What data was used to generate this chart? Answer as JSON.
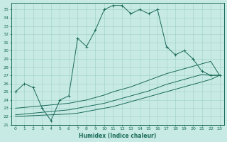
{
  "xlabel": "Humidex (Indice chaleur)",
  "xlim": [
    -0.5,
    23.5
  ],
  "ylim": [
    21,
    35.8
  ],
  "yticks": [
    21,
    22,
    23,
    24,
    25,
    26,
    27,
    28,
    29,
    30,
    31,
    32,
    33,
    34,
    35
  ],
  "xticks": [
    0,
    1,
    2,
    3,
    4,
    5,
    6,
    7,
    8,
    9,
    10,
    11,
    12,
    13,
    14,
    15,
    16,
    17,
    18,
    19,
    20,
    21,
    22,
    23
  ],
  "bg_color": "#c8eae4",
  "grid_color": "#9ecfc8",
  "line_color": "#1a6b5a",
  "series": {
    "max": [
      25.0,
      26.0,
      25.5,
      23.0,
      21.5,
      24.0,
      24.5,
      31.5,
      30.5,
      32.5,
      35.0,
      35.5,
      35.5,
      34.5,
      35.0,
      34.5,
      35.0,
      30.5,
      29.5,
      30.0,
      29.0,
      27.5,
      27.0,
      27.0
    ],
    "upper_diag": [
      23.0,
      23.1,
      23.2,
      23.3,
      23.4,
      23.5,
      23.6,
      23.8,
      24.0,
      24.3,
      24.6,
      25.0,
      25.3,
      25.6,
      26.0,
      26.4,
      26.8,
      27.2,
      27.5,
      27.8,
      28.1,
      28.4,
      28.7,
      27.0
    ],
    "mid_diag": [
      22.2,
      22.3,
      22.4,
      22.5,
      22.6,
      22.7,
      22.8,
      23.0,
      23.2,
      23.4,
      23.6,
      23.9,
      24.2,
      24.5,
      24.8,
      25.1,
      25.5,
      25.9,
      26.2,
      26.5,
      26.8,
      27.1,
      27.0,
      27.0
    ],
    "lower_diag": [
      22.0,
      22.05,
      22.1,
      22.15,
      22.2,
      22.25,
      22.3,
      22.4,
      22.6,
      22.8,
      23.0,
      23.2,
      23.5,
      23.8,
      24.1,
      24.4,
      24.7,
      25.0,
      25.3,
      25.6,
      25.9,
      26.2,
      26.5,
      27.0
    ]
  }
}
